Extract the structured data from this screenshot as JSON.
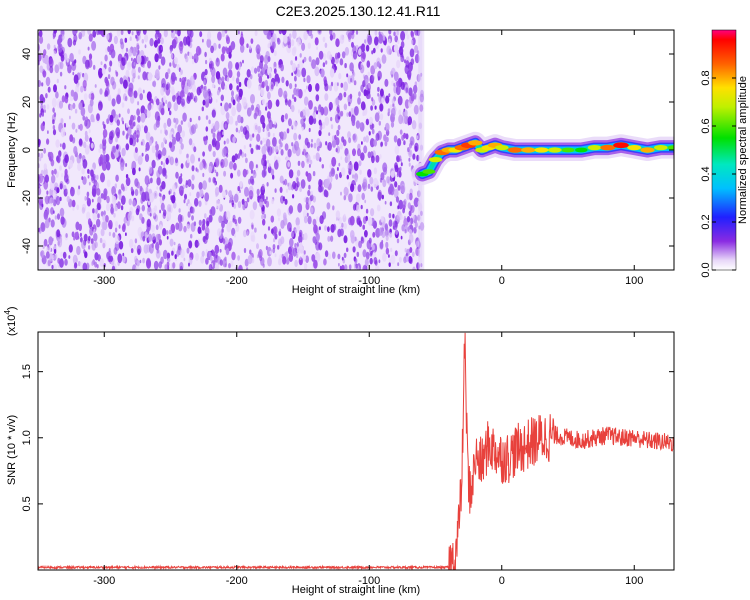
{
  "figure": {
    "title": "C2E3.2025.130.12.41.R11"
  },
  "chart_data": [
    {
      "type": "heatmap",
      "xlabel": "Height of straight line (km)",
      "ylabel": "Frequency (Hz)",
      "xlim": [
        -350,
        130
      ],
      "ylim": [
        -50,
        50
      ],
      "xticks": [
        -300,
        -200,
        -100,
        0,
        100
      ],
      "yticks": [
        -40,
        -20,
        0,
        20,
        40
      ],
      "noise_region_x": [
        -350,
        -60
      ],
      "ridge": [
        {
          "x": -60,
          "y": -10,
          "amp": 0.55
        },
        {
          "x": -55,
          "y": -9,
          "amp": 0.6
        },
        {
          "x": -50,
          "y": -4,
          "amp": 0.7
        },
        {
          "x": -45,
          "y": -1,
          "amp": 0.85
        },
        {
          "x": -40,
          "y": 0,
          "amp": 0.8
        },
        {
          "x": -35,
          "y": 0,
          "amp": 0.75
        },
        {
          "x": -30,
          "y": 1,
          "amp": 0.85
        },
        {
          "x": -25,
          "y": 2,
          "amp": 0.9
        },
        {
          "x": -20,
          "y": 3,
          "amp": 0.8
        },
        {
          "x": -15,
          "y": 0,
          "amp": 0.7
        },
        {
          "x": -10,
          "y": 1,
          "amp": 0.75
        },
        {
          "x": -5,
          "y": 2,
          "amp": 0.8
        },
        {
          "x": 0,
          "y": 1,
          "amp": 0.7
        },
        {
          "x": 10,
          "y": 0,
          "amp": 0.85
        },
        {
          "x": 20,
          "y": 0,
          "amp": 0.8
        },
        {
          "x": 30,
          "y": 0,
          "amp": 0.75
        },
        {
          "x": 40,
          "y": 0,
          "amp": 0.7
        },
        {
          "x": 50,
          "y": 0,
          "amp": 0.6
        },
        {
          "x": 60,
          "y": 0,
          "amp": 0.55
        },
        {
          "x": 70,
          "y": 1,
          "amp": 0.7
        },
        {
          "x": 80,
          "y": 1,
          "amp": 0.85
        },
        {
          "x": 90,
          "y": 2,
          "amp": 0.95
        },
        {
          "x": 100,
          "y": 1,
          "amp": 0.75
        },
        {
          "x": 110,
          "y": 0,
          "amp": 0.8
        },
        {
          "x": 120,
          "y": 1,
          "amp": 0.7
        },
        {
          "x": 130,
          "y": 1,
          "amp": 0.6
        }
      ],
      "colorbar": {
        "label": "Normalized spectral amplitude",
        "range": [
          0.0,
          1.0
        ],
        "ticks": [
          "0.0",
          "0.2",
          "0.4",
          "0.6",
          "0.8"
        ],
        "tick_values": [
          0.0,
          0.2,
          0.4,
          0.6,
          0.8
        ]
      }
    },
    {
      "type": "line",
      "xlabel": "Height of straight line (km)",
      "ylabel": "SNR (10 * v/v)",
      "scale_note": "(x10",
      "scale_exponent": "4",
      "xlim": [
        -350,
        130
      ],
      "ylim": [
        0,
        1.8
      ],
      "xticks": [
        -300,
        -200,
        -100,
        0,
        100
      ],
      "yticks": [
        "0.5",
        "1.0",
        "1.5"
      ],
      "ytick_values": [
        0.5,
        1.0,
        1.5
      ],
      "line_color": "#e8413c",
      "series": [
        {
          "x": [
            -350,
            -300,
            -200,
            -100,
            -40,
            -35,
            -32,
            -30,
            -28,
            -26,
            -25,
            -22,
            -20,
            -15,
            -10,
            -5,
            0,
            5,
            10,
            20,
            30,
            40,
            50,
            60,
            70,
            80,
            90,
            100,
            110,
            120,
            130
          ],
          "values": [
            0.02,
            0.02,
            0.02,
            0.02,
            0.02,
            0.1,
            0.4,
            0.7,
            1.75,
            0.9,
            0.6,
            0.65,
            0.85,
            0.8,
            0.95,
            0.9,
            0.85,
            0.85,
            0.9,
            0.95,
            1.0,
            1.02,
            1.0,
            0.98,
            1.0,
            1.02,
            1.0,
            1.0,
            0.98,
            0.97,
            0.96
          ]
        }
      ]
    }
  ]
}
